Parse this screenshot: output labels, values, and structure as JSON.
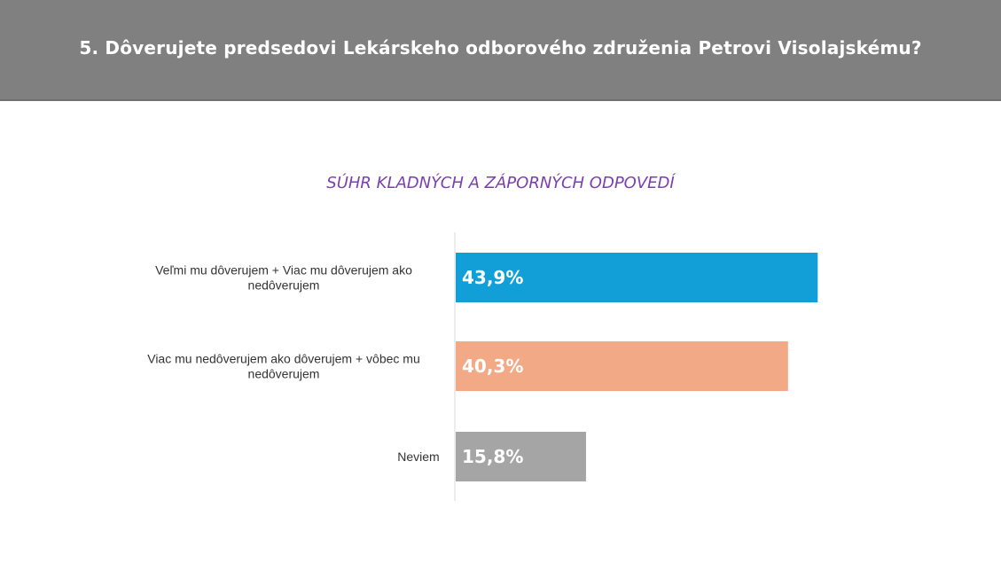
{
  "header": {
    "title": "5. Dôverujete predsedovi Lekárskeho odborového združenia Petrovi Visolajskému?"
  },
  "chart_data": {
    "type": "bar",
    "orientation": "horizontal",
    "title": "SÚHR KLADNÝCH A ZÁPORNÝCH ODPOVEDÍ",
    "categories": [
      [
        "Veľmi mu dôverujem + Viac mu dôverujem ako",
        "nedôverujem"
      ],
      [
        "Viac mu nedôverujem ako dôverujem + vôbec mu",
        "nedôverujem"
      ],
      [
        "Neviem"
      ]
    ],
    "values": [
      43.9,
      40.3,
      15.8
    ],
    "value_labels": [
      "43,9%",
      "40,3%",
      "15,8%"
    ],
    "colors": [
      "#129fd8",
      "#f2a986",
      "#a5a5a5"
    ],
    "xlim": [
      0,
      50
    ],
    "grid": false
  }
}
